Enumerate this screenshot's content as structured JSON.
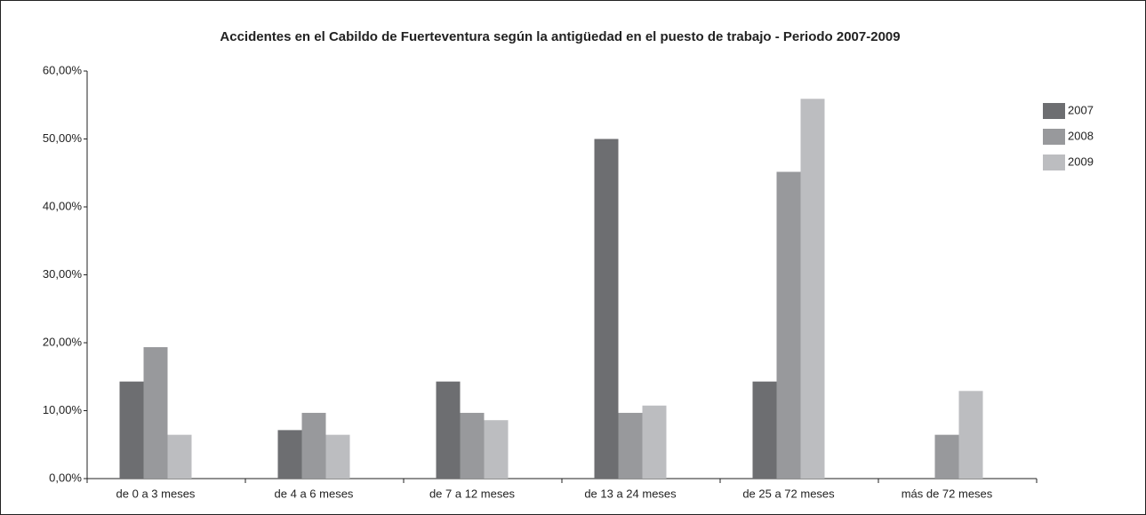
{
  "chart_data": {
    "type": "bar",
    "title": "Accidentes en el Cabildo de Fuerteventura según la antigüedad en el puesto de trabajo - Periodo 2007-2009",
    "categories": [
      "de 0 a 3 meses",
      "de 4 a 6 meses",
      "de 7 a 12 meses",
      "de 13 a 24 meses",
      "de 25 a 72 meses",
      "más de 72 meses"
    ],
    "series": [
      {
        "name": "2007",
        "color": "#6d6e71",
        "values": [
          14.29,
          7.14,
          14.29,
          50,
          14.29,
          null
        ]
      },
      {
        "name": "2008",
        "color": "#98999c",
        "values": [
          19.35,
          9.68,
          9.68,
          9.68,
          45.16,
          6.45
        ]
      },
      {
        "name": "2009",
        "color": "#bcbdc0",
        "values": [
          6.45,
          6.45,
          8.6,
          10.75,
          55.91,
          12.9
        ]
      }
    ],
    "ylim": [
      0,
      60
    ],
    "yticks": [
      {
        "value": 0,
        "label": "0,00%"
      },
      {
        "value": 10,
        "label": "10,00%"
      },
      {
        "value": 20,
        "label": "20,00%"
      },
      {
        "value": 30,
        "label": "30,00%"
      },
      {
        "value": 40,
        "label": "40,00%"
      },
      {
        "value": 50,
        "label": "50,00%"
      },
      {
        "value": 60,
        "label": "60,00%"
      }
    ],
    "grid": false,
    "legend": "right"
  }
}
